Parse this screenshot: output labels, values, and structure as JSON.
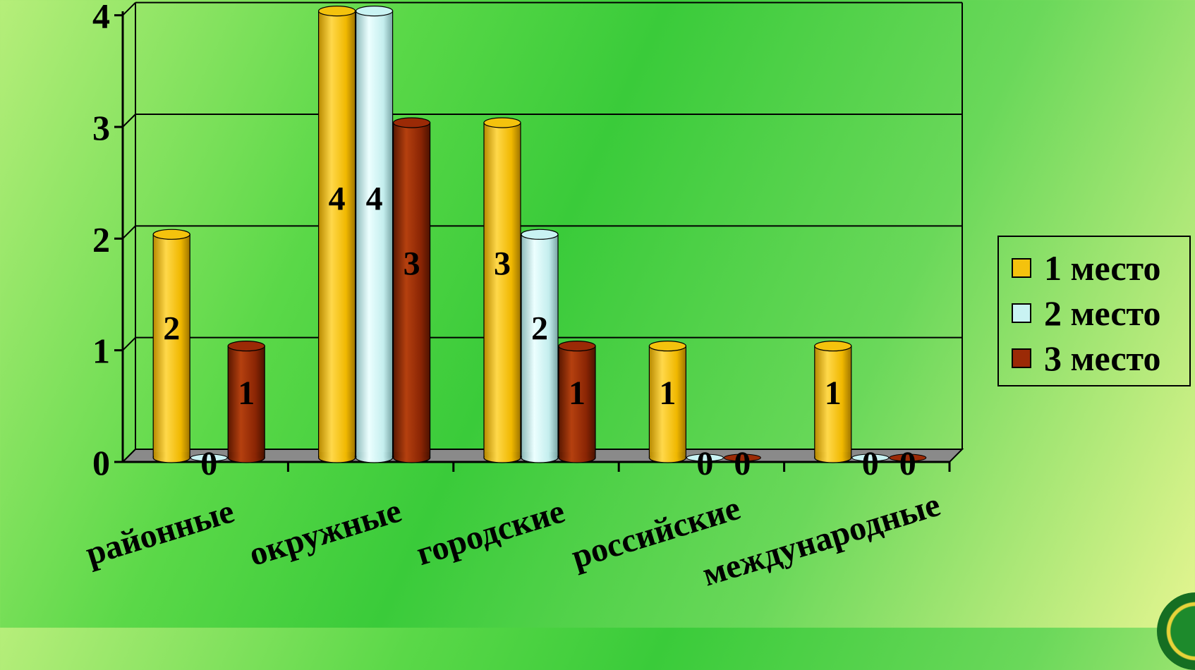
{
  "chart_data": {
    "type": "bar",
    "title": "",
    "xlabel": "",
    "ylabel": "",
    "ylim": [
      0,
      4
    ],
    "yticks": [
      "0",
      "1",
      "2",
      "3",
      "4"
    ],
    "grid": true,
    "legend_position": "right",
    "categories": [
      "районные",
      "окружные",
      "городские",
      "российские",
      "международные"
    ],
    "series": [
      {
        "name": "1 место",
        "values": [
          2,
          4,
          3,
          1,
          1
        ],
        "color": "#f4c20d"
      },
      {
        "name": "2 место",
        "values": [
          0,
          4,
          2,
          0,
          0
        ],
        "color": "#c9f3f3"
      },
      {
        "name": "3 место",
        "values": [
          1,
          3,
          1,
          0,
          0
        ],
        "color": "#9b2a06"
      }
    ]
  },
  "colors": {
    "plot_border": "#000000",
    "floor": "#8a8a8a"
  }
}
